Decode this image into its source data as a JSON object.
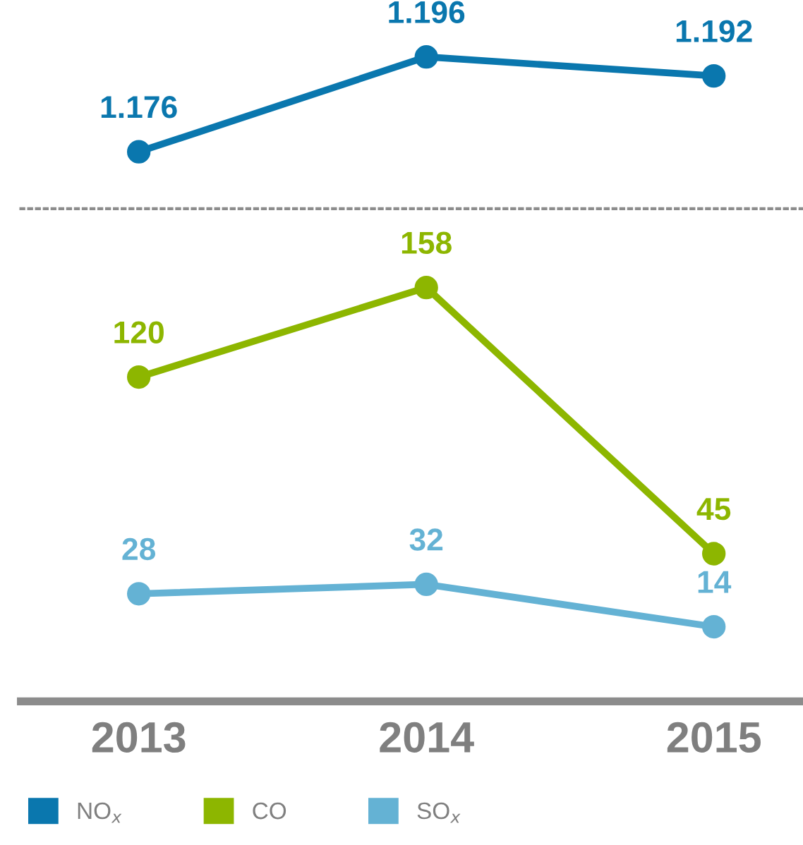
{
  "chart_data": [
    {
      "type": "line",
      "categories": [
        "2013",
        "2014",
        "2015"
      ],
      "series": [
        {
          "name": "NO$_{x}$",
          "color": "#0a77ae",
          "values": [
            1.176,
            1.196,
            1.192
          ]
        }
      ],
      "data_labels": true,
      "marker": "circle",
      "tick_labels": false,
      "grid": false,
      "legend": "bottom"
    },
    {
      "type": "line",
      "categories": [
        "2013",
        "2014",
        "2015"
      ],
      "series": [
        {
          "name": "CO",
          "color": "#8db600",
          "values": [
            120,
            158,
            45
          ]
        },
        {
          "name": "SO$_{x}$",
          "color": "#64b2d4",
          "values": [
            28,
            32,
            14
          ]
        }
      ],
      "data_labels": true,
      "marker": "circle",
      "tick_labels": "x",
      "grid": false,
      "legend": "bottom"
    }
  ]
}
